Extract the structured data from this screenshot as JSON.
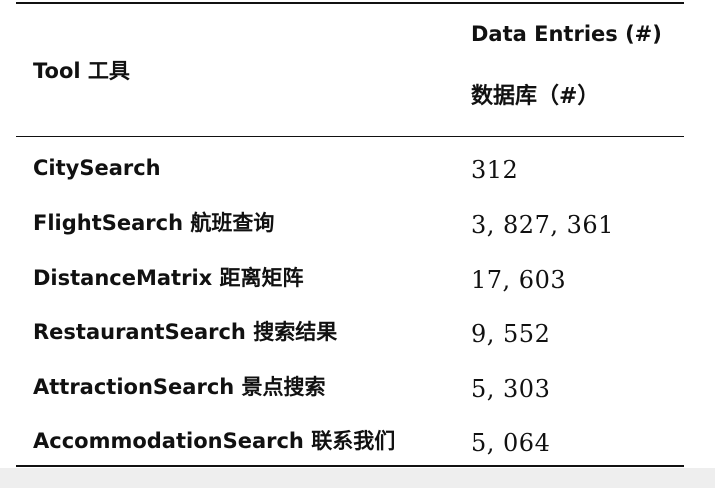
{
  "table": {
    "header": {
      "tool": "Tool 工具",
      "entries_en": "Data Entries (#)",
      "entries_zh": "数据库（#）"
    },
    "rows": [
      {
        "tool": "CitySearch",
        "entries": "312"
      },
      {
        "tool": "FlightSearch 航班查询",
        "entries": "3, 827, 361"
      },
      {
        "tool": "DistanceMatrix 距离矩阵",
        "entries": "17, 603"
      },
      {
        "tool": "RestaurantSearch 搜索结果",
        "entries": "9, 552"
      },
      {
        "tool": "AttractionSearch 景点搜索",
        "entries": "5, 303"
      },
      {
        "tool": "AccommodationSearch 联系我们",
        "entries": "5, 064"
      }
    ]
  }
}
